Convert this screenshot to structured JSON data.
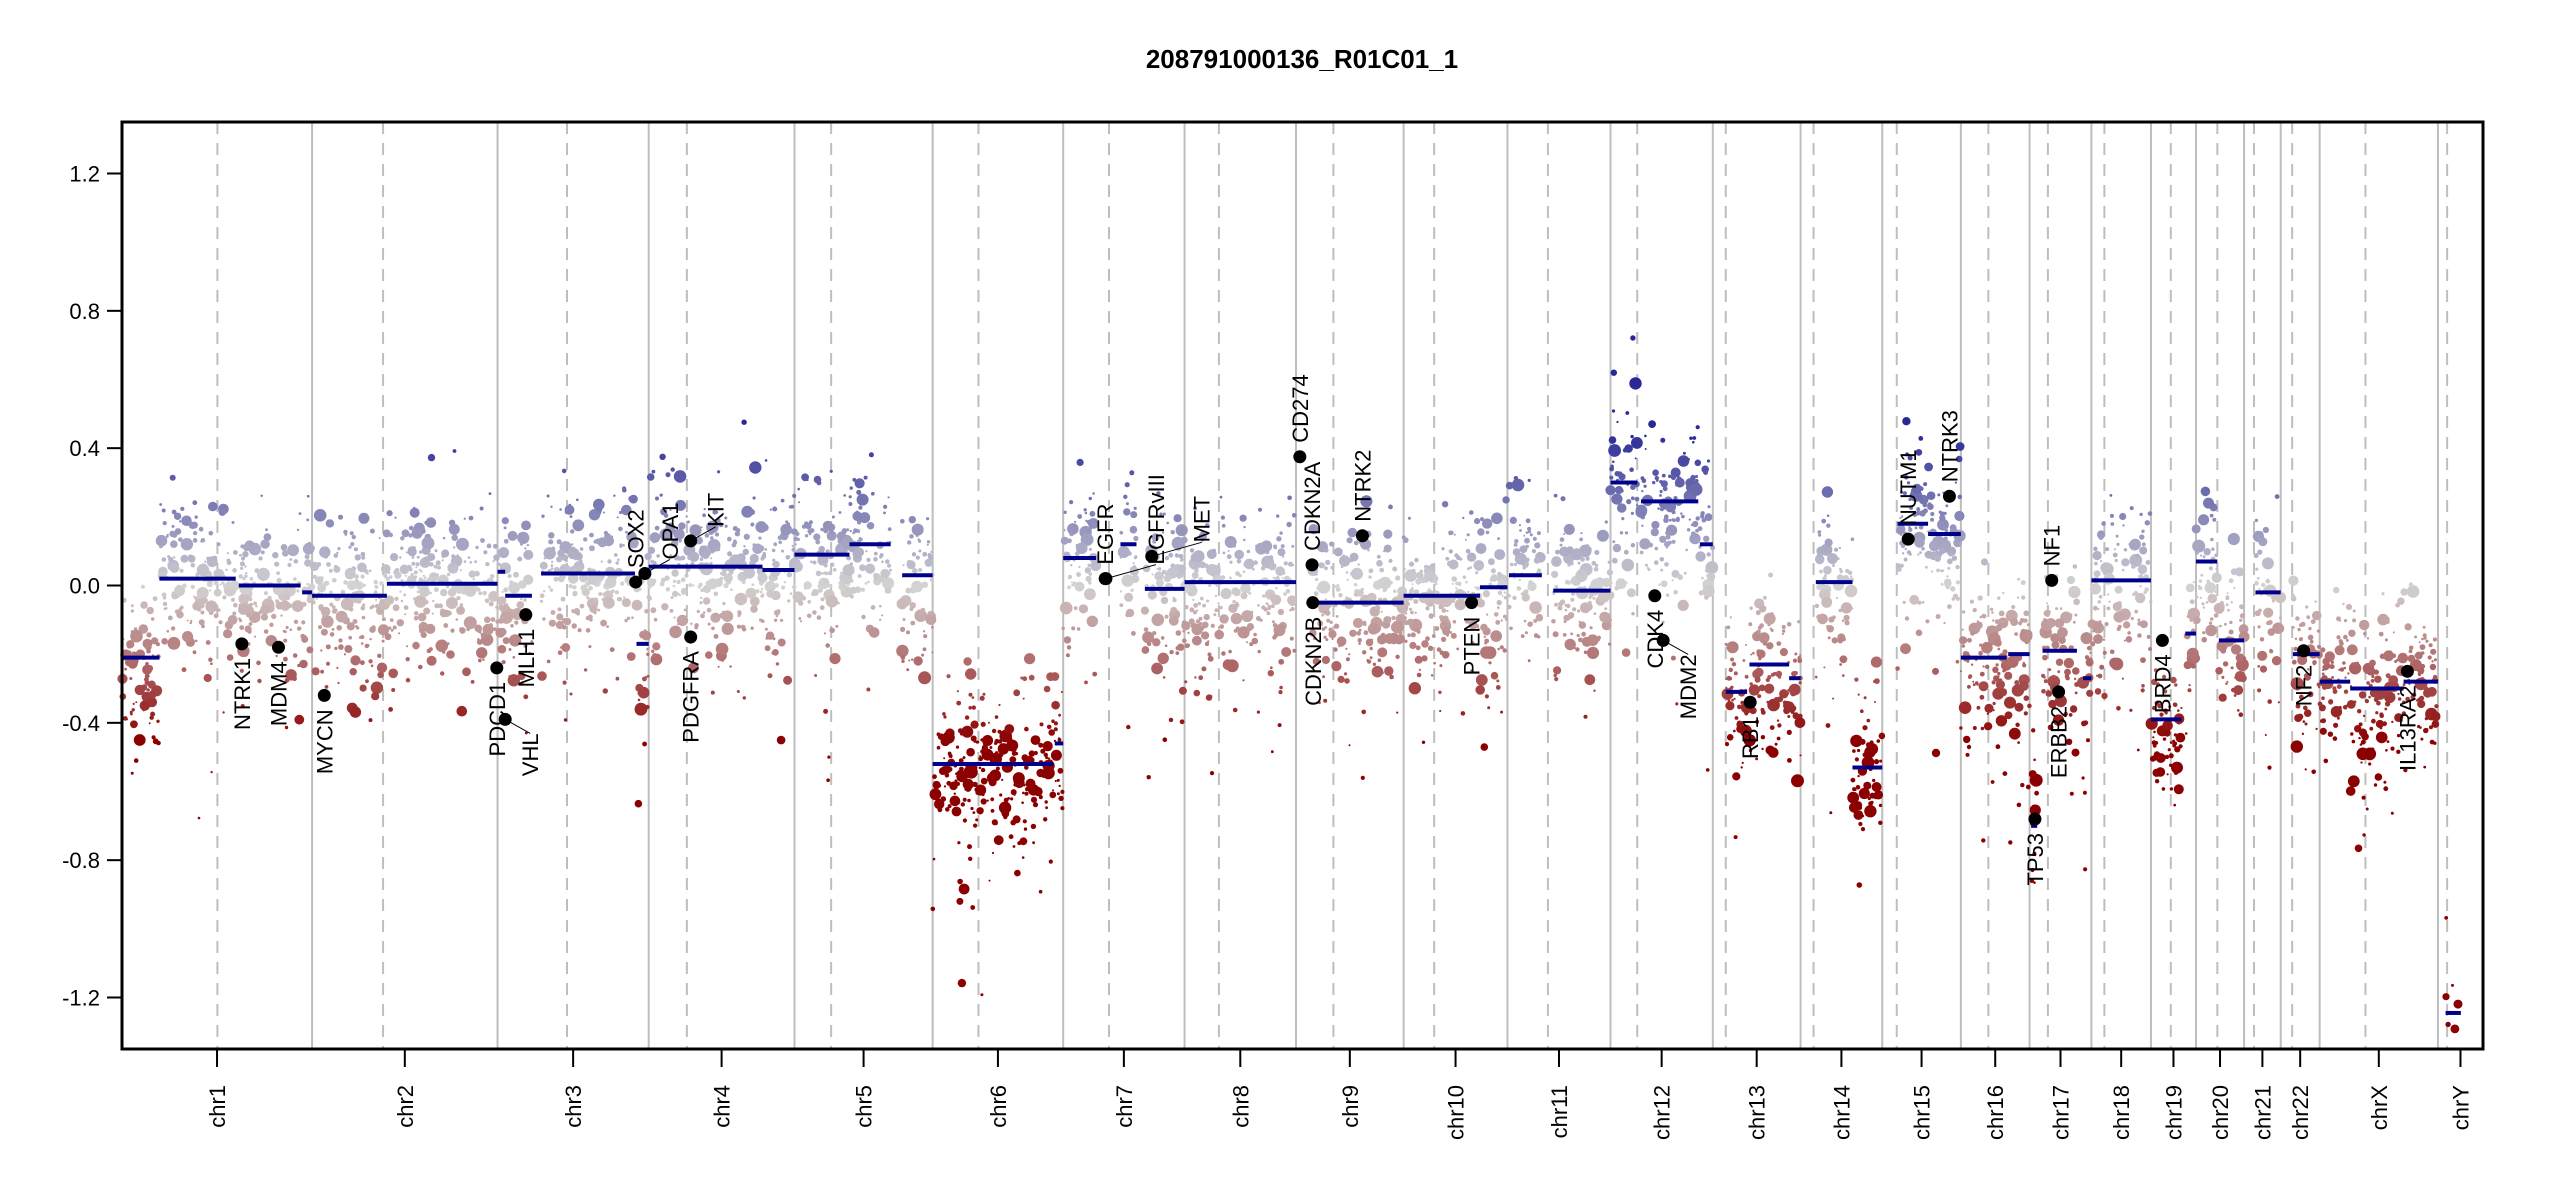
{
  "chart_data": {
    "type": "scatter",
    "title": "208791000136_R01C01_1",
    "xlabel": "",
    "ylabel": "",
    "ylim": [
      -1.35,
      1.35
    ],
    "yticks": [
      1.2,
      0.8,
      0.4,
      0.0,
      -0.4,
      -0.8,
      -1.2
    ],
    "ytick_labels": [
      "1.2",
      "0.8",
      "0.4",
      "0.0",
      "-0.4",
      "-0.8",
      "-1.2"
    ],
    "colors": {
      "gain": "#1c1c8c",
      "neutral": "#d3d3d3",
      "loss": "#8b0000",
      "segment": "#00008b",
      "gene": "#000000",
      "chr_border": "#bebebe",
      "centromere": "#bebebe"
    },
    "chromosomes": [
      {
        "name": "chr1",
        "length_mb": 249,
        "centromere_mb": 125
      },
      {
        "name": "chr2",
        "length_mb": 243,
        "centromere_mb": 93
      },
      {
        "name": "chr3",
        "length_mb": 198,
        "centromere_mb": 91
      },
      {
        "name": "chr4",
        "length_mb": 191,
        "centromere_mb": 50
      },
      {
        "name": "chr5",
        "length_mb": 181,
        "centromere_mb": 48
      },
      {
        "name": "chr6",
        "length_mb": 171,
        "centromere_mb": 60
      },
      {
        "name": "chr7",
        "length_mb": 159,
        "centromere_mb": 60
      },
      {
        "name": "chr8",
        "length_mb": 146,
        "centromere_mb": 45
      },
      {
        "name": "chr9",
        "length_mb": 141,
        "centromere_mb": 49
      },
      {
        "name": "chr10",
        "length_mb": 136,
        "centromere_mb": 40
      },
      {
        "name": "chr11",
        "length_mb": 135,
        "centromere_mb": 53
      },
      {
        "name": "chr12",
        "length_mb": 134,
        "centromere_mb": 35
      },
      {
        "name": "chr13",
        "length_mb": 115,
        "centromere_mb": 17
      },
      {
        "name": "chr14",
        "length_mb": 107,
        "centromere_mb": 17
      },
      {
        "name": "chr15",
        "length_mb": 103,
        "centromere_mb": 19
      },
      {
        "name": "chr16",
        "length_mb": 90,
        "centromere_mb": 36
      },
      {
        "name": "chr17",
        "length_mb": 81,
        "centromere_mb": 24
      },
      {
        "name": "chr18",
        "length_mb": 78,
        "centromere_mb": 17
      },
      {
        "name": "chr19",
        "length_mb": 59,
        "centromere_mb": 26
      },
      {
        "name": "chr20",
        "length_mb": 63,
        "centromere_mb": 28
      },
      {
        "name": "chr21",
        "length_mb": 48,
        "centromere_mb": 13
      },
      {
        "name": "chr22",
        "length_mb": 51,
        "centromere_mb": 15
      },
      {
        "name": "chrX",
        "length_mb": 155,
        "centromere_mb": 60
      },
      {
        "name": "chrY",
        "length_mb": 59,
        "centromere_mb": 12
      }
    ],
    "segments": [
      [
        "chr1",
        0,
        49,
        -0.21
      ],
      [
        "chr1",
        49,
        149,
        0.02
      ],
      [
        "chr1",
        153,
        234,
        0.0
      ],
      [
        "chr1",
        236,
        249,
        -0.02
      ],
      [
        "chr2",
        0,
        98,
        -0.03
      ],
      [
        "chr2",
        98,
        243,
        0.005
      ],
      [
        "chr3",
        0,
        10,
        0.04
      ],
      [
        "chr3",
        10,
        45,
        -0.03
      ],
      [
        "chr3",
        57,
        180,
        0.035
      ],
      [
        "chr3",
        182,
        198,
        -0.17
      ],
      [
        "chr4",
        0,
        149,
        0.055
      ],
      [
        "chr4",
        149,
        191,
        0.045
      ],
      [
        "chr5",
        0,
        72,
        0.09
      ],
      [
        "chr5",
        72,
        126,
        0.12
      ],
      [
        "chr5",
        141,
        181,
        0.03
      ],
      [
        "chr6",
        0,
        158,
        -0.52
      ],
      [
        "chr6",
        160,
        171,
        -0.46
      ],
      [
        "chr7",
        0,
        43,
        0.08
      ],
      [
        "chr7",
        75,
        96,
        0.12
      ],
      [
        "chr7",
        107,
        159,
        -0.01
      ],
      [
        "chr8",
        0,
        146,
        0.01
      ],
      [
        "chr9",
        21,
        141,
        -0.05
      ],
      [
        "chr10",
        0,
        100,
        -0.03
      ],
      [
        "chr10",
        100,
        136,
        -0.005
      ],
      [
        "chr11",
        2,
        45,
        0.03
      ],
      [
        "chr11",
        60,
        135,
        -0.015
      ],
      [
        "chr12",
        0,
        35,
        0.3
      ],
      [
        "chr12",
        40,
        115,
        0.245
      ],
      [
        "chr12",
        117,
        134,
        0.12
      ],
      [
        "chr13",
        17,
        45,
        -0.31
      ],
      [
        "chr13",
        48,
        100,
        -0.23
      ],
      [
        "chr13",
        100,
        115,
        -0.27
      ],
      [
        "chr14",
        20,
        68,
        0.01
      ],
      [
        "chr14",
        68,
        107,
        -0.53
      ],
      [
        "chr15",
        20,
        60,
        0.18
      ],
      [
        "chr15",
        60,
        103,
        0.15
      ],
      [
        "chr16",
        0,
        60,
        -0.21
      ],
      [
        "chr16",
        62,
        90,
        -0.2
      ],
      [
        "chr17",
        2,
        10,
        -0.7
      ],
      [
        "chr17",
        17,
        62,
        -0.19
      ],
      [
        "chr17",
        70,
        81,
        -0.27
      ],
      [
        "chr18",
        0,
        78,
        0.015
      ],
      [
        "chr19",
        0,
        40,
        -0.39
      ],
      [
        "chr19",
        45,
        59,
        -0.14
      ],
      [
        "chr20",
        0,
        28,
        0.07
      ],
      [
        "chr20",
        30,
        63,
        -0.16
      ],
      [
        "chr21",
        15,
        48,
        -0.02
      ],
      [
        "chr22",
        16,
        51,
        -0.2
      ],
      [
        "chrX",
        0,
        40,
        -0.28
      ],
      [
        "chrX",
        40,
        110,
        -0.3
      ],
      [
        "chrX",
        110,
        155,
        -0.28
      ],
      [
        "chrY",
        10,
        30,
        -1.245
      ]
    ],
    "genes": [
      {
        "name": "NTRK1",
        "chr": "chr1",
        "pos_mb": 157,
        "value": -0.17
      },
      {
        "name": "MDM4",
        "chr": "chr1",
        "pos_mb": 205,
        "value": -0.18
      },
      {
        "name": "MYCN",
        "chr": "chr2",
        "pos_mb": 16,
        "value": -0.32
      },
      {
        "name": "PDCD1",
        "chr": "chr2",
        "pos_mb": 242,
        "value": -0.24
      },
      {
        "name": "VHL",
        "chr": "chr3",
        "pos_mb": 10,
        "value": -0.39
      },
      {
        "name": "MLH1",
        "chr": "chr3",
        "pos_mb": 37,
        "value": -0.085
      },
      {
        "name": "SOX2",
        "chr": "chr3",
        "pos_mb": 181,
        "value": 0.01
      },
      {
        "name": "OPA1",
        "chr": "chr3",
        "pos_mb": 193,
        "value": 0.035
      },
      {
        "name": "KIT",
        "chr": "chr4",
        "pos_mb": 55,
        "value": 0.13
      },
      {
        "name": "PDGFRA",
        "chr": "chr4",
        "pos_mb": 55,
        "value": -0.15
      },
      {
        "name": "EGFR",
        "chr": "chr7",
        "pos_mb": 55,
        "value": 0.02
      },
      {
        "name": "EGFRvIII",
        "chr": "chr7",
        "pos_mb": 56,
        "value": 0.02
      },
      {
        "name": "MET",
        "chr": "chr7",
        "pos_mb": 116,
        "value": 0.085
      },
      {
        "name": "CD274",
        "chr": "chr9",
        "pos_mb": 5,
        "value": 0.375
      },
      {
        "name": "CDKN2A",
        "chr": "chr9",
        "pos_mb": 21,
        "value": 0.06
      },
      {
        "name": "CDKN2B",
        "chr": "chr9",
        "pos_mb": 22,
        "value": -0.05
      },
      {
        "name": "NTRK2",
        "chr": "chr9",
        "pos_mb": 87,
        "value": 0.145
      },
      {
        "name": "PTEN",
        "chr": "chr10",
        "pos_mb": 89,
        "value": -0.05
      },
      {
        "name": "CDK4",
        "chr": "chr12",
        "pos_mb": 58,
        "value": -0.03
      },
      {
        "name": "MDM2",
        "chr": "chr12",
        "pos_mb": 69,
        "value": -0.16
      },
      {
        "name": "RB1",
        "chr": "chr13",
        "pos_mb": 49,
        "value": -0.34
      },
      {
        "name": "NUTM1",
        "chr": "chr15",
        "pos_mb": 34,
        "value": 0.135
      },
      {
        "name": "NTRK3",
        "chr": "chr15",
        "pos_mb": 88,
        "value": 0.26
      },
      {
        "name": "TP53",
        "chr": "chr17",
        "pos_mb": 7,
        "value": -0.68
      },
      {
        "name": "NF1",
        "chr": "chr17",
        "pos_mb": 29,
        "value": 0.015
      },
      {
        "name": "ERBB2",
        "chr": "chr17",
        "pos_mb": 38,
        "value": -0.31
      },
      {
        "name": "BRD4",
        "chr": "chr19",
        "pos_mb": 15,
        "value": -0.16
      },
      {
        "name": "NF2",
        "chr": "chr22",
        "pos_mb": 30,
        "value": -0.19
      },
      {
        "name": "IL13RA2",
        "chr": "chrX",
        "pos_mb": 115,
        "value": -0.25
      }
    ]
  }
}
